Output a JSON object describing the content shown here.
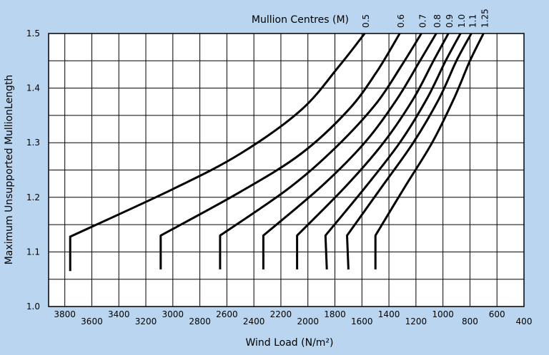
{
  "chart_data": {
    "type": "line",
    "title": "",
    "xlabel": "Wind Load (N/m²)",
    "ylabel": "Maximum Unsupported MullionLength",
    "top_axis_label": "Mullion Centres (M)",
    "xlim": [
      3920,
      400
    ],
    "x_reversed": true,
    "ylim": [
      1.0,
      1.5
    ],
    "grid": true,
    "x_ticks": [
      3800,
      3600,
      3400,
      3200,
      3000,
      2800,
      2600,
      2400,
      2200,
      2000,
      1800,
      1600,
      1400,
      1200,
      1000,
      800,
      600,
      400
    ],
    "y_ticks": [
      1.0,
      1.1,
      1.2,
      1.3,
      1.4,
      1.5
    ],
    "y_tick_labels": [
      "1.0",
      "1.1",
      "1.2",
      "1.3",
      "1.4",
      "1.5"
    ],
    "colors": {
      "background": "#b9d5ef",
      "plot": "#ffffff",
      "line": "#000000"
    },
    "series": [
      {
        "name": "0.5",
        "points": [
          [
            3760,
            1.065
          ],
          [
            3760,
            1.128
          ],
          [
            3000,
            1.215
          ],
          [
            2500,
            1.28
          ],
          [
            2050,
            1.36
          ],
          [
            1770,
            1.44
          ],
          [
            1580,
            1.5
          ]
        ]
      },
      {
        "name": "0.6",
        "points": [
          [
            3090,
            1.068
          ],
          [
            3090,
            1.13
          ],
          [
            2500,
            1.21
          ],
          [
            2050,
            1.28
          ],
          [
            1700,
            1.36
          ],
          [
            1490,
            1.43
          ],
          [
            1320,
            1.5
          ]
        ]
      },
      {
        "name": "0.7",
        "points": [
          [
            2650,
            1.068
          ],
          [
            2650,
            1.13
          ],
          [
            2150,
            1.215
          ],
          [
            1800,
            1.29
          ],
          [
            1500,
            1.37
          ],
          [
            1310,
            1.44
          ],
          [
            1160,
            1.5
          ]
        ]
      },
      {
        "name": "0.8",
        "points": [
          [
            2330,
            1.068
          ],
          [
            2330,
            1.13
          ],
          [
            1900,
            1.22
          ],
          [
            1580,
            1.3
          ],
          [
            1340,
            1.38
          ],
          [
            1170,
            1.45
          ],
          [
            1050,
            1.5
          ]
        ]
      },
      {
        "name": "0.9",
        "points": [
          [
            2080,
            1.068
          ],
          [
            2080,
            1.13
          ],
          [
            1720,
            1.22
          ],
          [
            1440,
            1.3
          ],
          [
            1220,
            1.38
          ],
          [
            1070,
            1.45
          ],
          [
            960,
            1.5
          ]
        ]
      },
      {
        "name": "1.0",
        "points": [
          [
            1860,
            1.068
          ],
          [
            1870,
            1.13
          ],
          [
            1570,
            1.22
          ],
          [
            1320,
            1.3
          ],
          [
            1120,
            1.38
          ],
          [
            980,
            1.45
          ],
          [
            870,
            1.5
          ]
        ]
      },
      {
        "name": "1.1",
        "points": [
          [
            1700,
            1.068
          ],
          [
            1710,
            1.13
          ],
          [
            1450,
            1.22
          ],
          [
            1220,
            1.3
          ],
          [
            1030,
            1.38
          ],
          [
            900,
            1.45
          ],
          [
            790,
            1.5
          ]
        ]
      },
      {
        "name": "1.25",
        "points": [
          [
            1500,
            1.068
          ],
          [
            1500,
            1.13
          ],
          [
            1280,
            1.22
          ],
          [
            1080,
            1.3
          ],
          [
            920,
            1.38
          ],
          [
            800,
            1.45
          ],
          [
            700,
            1.5
          ]
        ]
      }
    ]
  }
}
